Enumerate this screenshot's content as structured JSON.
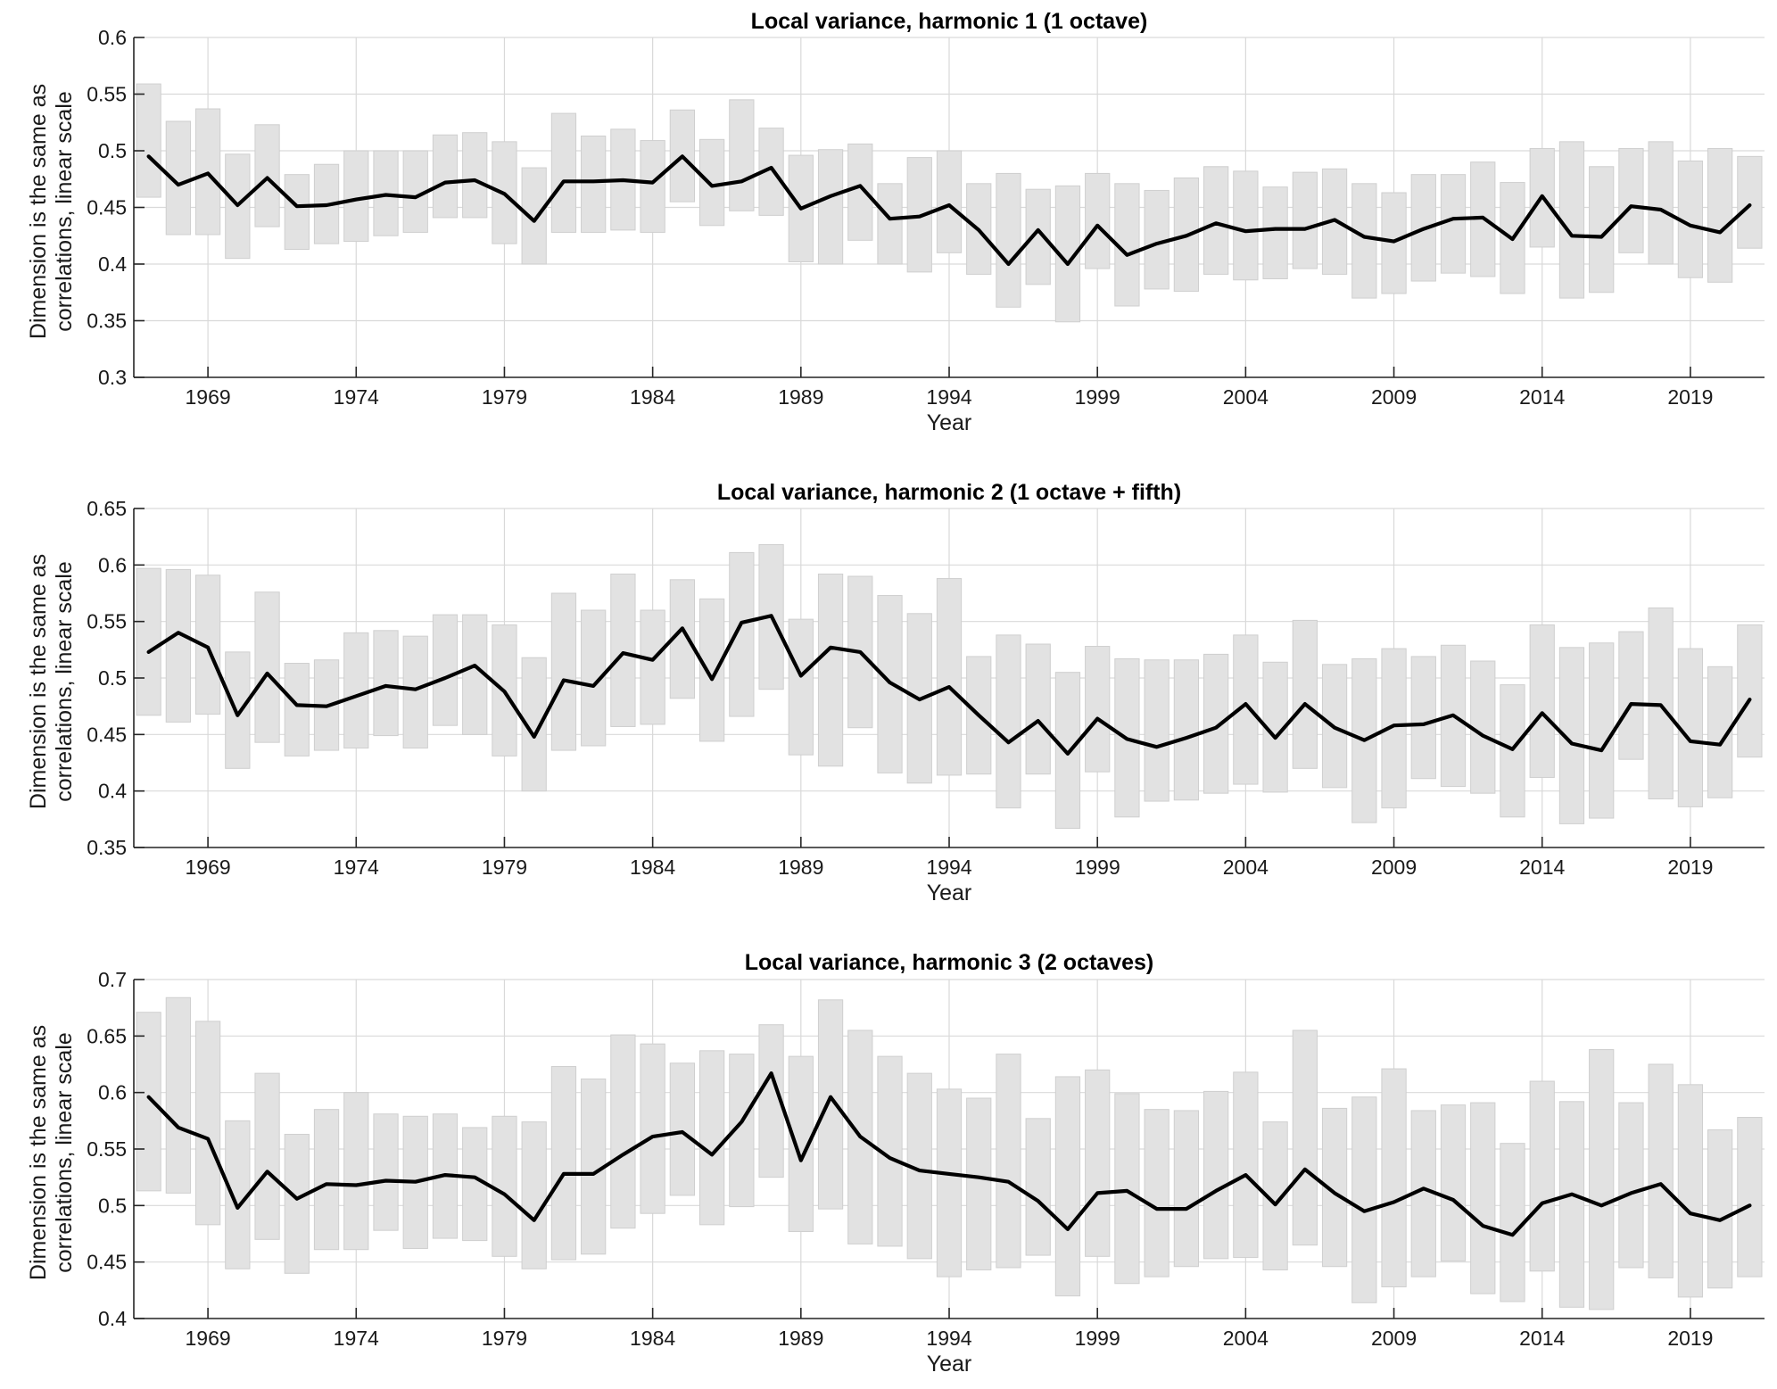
{
  "colors": {
    "line": "#000000",
    "error_box": "#e2e2e2",
    "error_box_edge": "#cfcfcf",
    "grid": "#d9d9d9",
    "axis": "#262626"
  },
  "chart_data": [
    {
      "type": "line",
      "title": "Local variance, harmonic 1 (1 octave)",
      "xlabel": "Year",
      "ylabel": [
        "Dimension is the same as",
        "correlations, linear scale"
      ],
      "xlim": [
        1966.5,
        2021.5
      ],
      "ylim": [
        0.3,
        0.6
      ],
      "yticks": [
        0.3,
        0.35,
        0.4,
        0.45,
        0.5,
        0.55,
        0.6
      ],
      "ytick_labels": [
        "0.3",
        "0.35",
        "0.4",
        "0.45",
        "0.5",
        "0.55",
        "0.6"
      ],
      "xticks": [
        1969,
        1974,
        1979,
        1984,
        1989,
        1994,
        1999,
        2004,
        2009,
        2014,
        2019
      ],
      "xtick_labels": [
        "1969",
        "1974",
        "1979",
        "1984",
        "1989",
        "1994",
        "1999",
        "2004",
        "2009",
        "2014",
        "2019"
      ],
      "grid": true,
      "x": [
        1967,
        1968,
        1969,
        1970,
        1971,
        1972,
        1973,
        1974,
        1975,
        1976,
        1977,
        1978,
        1979,
        1980,
        1981,
        1982,
        1983,
        1984,
        1985,
        1986,
        1987,
        1988,
        1989,
        1990,
        1991,
        1992,
        1993,
        1994,
        1995,
        1996,
        1997,
        1998,
        1999,
        2000,
        2001,
        2002,
        2003,
        2004,
        2005,
        2006,
        2007,
        2008,
        2009,
        2010,
        2011,
        2012,
        2013,
        2014,
        2015,
        2016,
        2017,
        2018,
        2019,
        2020,
        2021
      ],
      "y": [
        0.495,
        0.47,
        0.48,
        0.452,
        0.476,
        0.451,
        0.452,
        0.457,
        0.461,
        0.459,
        0.472,
        0.474,
        0.462,
        0.438,
        0.473,
        0.473,
        0.474,
        0.472,
        0.495,
        0.469,
        0.473,
        0.485,
        0.449,
        0.46,
        0.469,
        0.44,
        0.442,
        0.452,
        0.43,
        0.4,
        0.43,
        0.4,
        0.434,
        0.408,
        0.418,
        0.425,
        0.436,
        0.429,
        0.431,
        0.431,
        0.439,
        0.424,
        0.42,
        0.431,
        0.44,
        0.441,
        0.422,
        0.46,
        0.425,
        0.424,
        0.451,
        0.448,
        0.434,
        0.428,
        0.452
      ],
      "lower": [
        0.459,
        0.426,
        0.426,
        0.405,
        0.433,
        0.413,
        0.418,
        0.42,
        0.425,
        0.428,
        0.441,
        0.441,
        0.418,
        0.4,
        0.428,
        0.428,
        0.43,
        0.428,
        0.455,
        0.434,
        0.447,
        0.443,
        0.402,
        0.4,
        0.421,
        0.4,
        0.393,
        0.41,
        0.391,
        0.362,
        0.382,
        0.349,
        0.396,
        0.363,
        0.378,
        0.376,
        0.391,
        0.386,
        0.387,
        0.396,
        0.391,
        0.37,
        0.374,
        0.385,
        0.392,
        0.389,
        0.374,
        0.415,
        0.37,
        0.375,
        0.41,
        0.4,
        0.388,
        0.384,
        0.414
      ],
      "upper": [
        0.559,
        0.526,
        0.537,
        0.497,
        0.523,
        0.479,
        0.488,
        0.5,
        0.5,
        0.5,
        0.514,
        0.516,
        0.508,
        0.485,
        0.533,
        0.513,
        0.519,
        0.509,
        0.536,
        0.51,
        0.545,
        0.52,
        0.496,
        0.501,
        0.506,
        0.471,
        0.494,
        0.5,
        0.471,
        0.48,
        0.466,
        0.469,
        0.48,
        0.471,
        0.465,
        0.476,
        0.486,
        0.482,
        0.468,
        0.481,
        0.484,
        0.471,
        0.463,
        0.479,
        0.479,
        0.49,
        0.472,
        0.502,
        0.508,
        0.486,
        0.502,
        0.508,
        0.491,
        0.502,
        0.495
      ]
    },
    {
      "type": "line",
      "title": "Local variance, harmonic 2 (1 octave + fifth)",
      "xlabel": "Year",
      "ylabel": [
        "Dimension is the same as",
        "correlations, linear scale"
      ],
      "xlim": [
        1966.5,
        2021.5
      ],
      "ylim": [
        0.35,
        0.65
      ],
      "yticks": [
        0.35,
        0.4,
        0.45,
        0.5,
        0.55,
        0.6,
        0.65
      ],
      "ytick_labels": [
        "0.35",
        "0.4",
        "0.45",
        "0.5",
        "0.55",
        "0.6",
        "0.65"
      ],
      "xticks": [
        1969,
        1974,
        1979,
        1984,
        1989,
        1994,
        1999,
        2004,
        2009,
        2014,
        2019
      ],
      "xtick_labels": [
        "1969",
        "1974",
        "1979",
        "1984",
        "1989",
        "1994",
        "1999",
        "2004",
        "2009",
        "2014",
        "2019"
      ],
      "grid": true,
      "x": [
        1967,
        1968,
        1969,
        1970,
        1971,
        1972,
        1973,
        1974,
        1975,
        1976,
        1977,
        1978,
        1979,
        1980,
        1981,
        1982,
        1983,
        1984,
        1985,
        1986,
        1987,
        1988,
        1989,
        1990,
        1991,
        1992,
        1993,
        1994,
        1995,
        1996,
        1997,
        1998,
        1999,
        2000,
        2001,
        2002,
        2003,
        2004,
        2005,
        2006,
        2007,
        2008,
        2009,
        2010,
        2011,
        2012,
        2013,
        2014,
        2015,
        2016,
        2017,
        2018,
        2019,
        2020,
        2021
      ],
      "y": [
        0.523,
        0.54,
        0.527,
        0.467,
        0.504,
        0.476,
        0.475,
        0.484,
        0.493,
        0.49,
        0.5,
        0.511,
        0.488,
        0.448,
        0.498,
        0.493,
        0.522,
        0.516,
        0.544,
        0.499,
        0.549,
        0.555,
        0.502,
        0.527,
        0.523,
        0.496,
        0.481,
        0.492,
        0.467,
        0.443,
        0.462,
        0.433,
        0.464,
        0.446,
        0.439,
        0.447,
        0.456,
        0.477,
        0.447,
        0.477,
        0.456,
        0.445,
        0.458,
        0.459,
        0.467,
        0.449,
        0.437,
        0.469,
        0.442,
        0.436,
        0.477,
        0.476,
        0.444,
        0.441,
        0.481
      ],
      "lower": [
        0.467,
        0.461,
        0.468,
        0.42,
        0.443,
        0.431,
        0.436,
        0.438,
        0.449,
        0.438,
        0.458,
        0.45,
        0.431,
        0.4,
        0.436,
        0.44,
        0.457,
        0.459,
        0.482,
        0.444,
        0.466,
        0.49,
        0.432,
        0.422,
        0.456,
        0.416,
        0.407,
        0.414,
        0.415,
        0.385,
        0.415,
        0.367,
        0.417,
        0.377,
        0.391,
        0.392,
        0.398,
        0.406,
        0.399,
        0.42,
        0.403,
        0.372,
        0.385,
        0.411,
        0.404,
        0.398,
        0.377,
        0.412,
        0.371,
        0.376,
        0.428,
        0.393,
        0.386,
        0.394,
        0.43
      ],
      "upper": [
        0.597,
        0.596,
        0.591,
        0.523,
        0.576,
        0.513,
        0.516,
        0.54,
        0.542,
        0.537,
        0.556,
        0.556,
        0.547,
        0.518,
        0.575,
        0.56,
        0.592,
        0.56,
        0.587,
        0.57,
        0.611,
        0.618,
        0.552,
        0.592,
        0.59,
        0.573,
        0.557,
        0.588,
        0.519,
        0.538,
        0.53,
        0.505,
        0.528,
        0.517,
        0.516,
        0.516,
        0.521,
        0.538,
        0.514,
        0.551,
        0.512,
        0.517,
        0.526,
        0.519,
        0.529,
        0.515,
        0.494,
        0.547,
        0.527,
        0.531,
        0.541,
        0.562,
        0.526,
        0.51,
        0.547
      ]
    },
    {
      "type": "line",
      "title": "Local variance, harmonic 3 (2 octaves)",
      "xlabel": "Year",
      "ylabel": [
        "Dimension is the same as",
        "correlations, linear scale"
      ],
      "xlim": [
        1966.5,
        2021.5
      ],
      "ylim": [
        0.4,
        0.7
      ],
      "yticks": [
        0.4,
        0.45,
        0.5,
        0.55,
        0.6,
        0.65,
        0.7
      ],
      "ytick_labels": [
        "0.4",
        "0.45",
        "0.5",
        "0.55",
        "0.6",
        "0.65",
        "0.7"
      ],
      "xticks": [
        1969,
        1974,
        1979,
        1984,
        1989,
        1994,
        1999,
        2004,
        2009,
        2014,
        2019
      ],
      "xtick_labels": [
        "1969",
        "1974",
        "1979",
        "1984",
        "1989",
        "1994",
        "1999",
        "2004",
        "2009",
        "2014",
        "2019"
      ],
      "grid": true,
      "x": [
        1967,
        1968,
        1969,
        1970,
        1971,
        1972,
        1973,
        1974,
        1975,
        1976,
        1977,
        1978,
        1979,
        1980,
        1981,
        1982,
        1983,
        1984,
        1985,
        1986,
        1987,
        1988,
        1989,
        1990,
        1991,
        1992,
        1993,
        1994,
        1995,
        1996,
        1997,
        1998,
        1999,
        2000,
        2001,
        2002,
        2003,
        2004,
        2005,
        2006,
        2007,
        2008,
        2009,
        2010,
        2011,
        2012,
        2013,
        2014,
        2015,
        2016,
        2017,
        2018,
        2019,
        2020,
        2021
      ],
      "y": [
        0.596,
        0.569,
        0.559,
        0.498,
        0.53,
        0.506,
        0.519,
        0.518,
        0.522,
        0.521,
        0.527,
        0.525,
        0.51,
        0.487,
        0.528,
        0.528,
        0.545,
        0.561,
        0.565,
        0.545,
        0.574,
        0.617,
        0.54,
        0.596,
        0.561,
        0.542,
        0.531,
        0.528,
        0.525,
        0.521,
        0.504,
        0.479,
        0.511,
        0.513,
        0.497,
        0.497,
        0.513,
        0.527,
        0.501,
        0.532,
        0.511,
        0.495,
        0.503,
        0.515,
        0.505,
        0.482,
        0.474,
        0.502,
        0.51,
        0.5,
        0.511,
        0.519,
        0.493,
        0.487,
        0.5
      ],
      "lower": [
        0.513,
        0.511,
        0.483,
        0.444,
        0.47,
        0.44,
        0.461,
        0.461,
        0.478,
        0.462,
        0.471,
        0.469,
        0.455,
        0.444,
        0.452,
        0.457,
        0.48,
        0.493,
        0.509,
        0.483,
        0.499,
        0.525,
        0.477,
        0.497,
        0.466,
        0.464,
        0.453,
        0.437,
        0.443,
        0.445,
        0.456,
        0.42,
        0.455,
        0.431,
        0.437,
        0.446,
        0.453,
        0.454,
        0.443,
        0.465,
        0.446,
        0.414,
        0.428,
        0.437,
        0.451,
        0.422,
        0.415,
        0.442,
        0.41,
        0.408,
        0.445,
        0.436,
        0.419,
        0.427,
        0.437
      ],
      "upper": [
        0.671,
        0.684,
        0.663,
        0.575,
        0.617,
        0.563,
        0.585,
        0.6,
        0.581,
        0.579,
        0.581,
        0.569,
        0.579,
        0.574,
        0.623,
        0.612,
        0.651,
        0.643,
        0.626,
        0.637,
        0.634,
        0.66,
        0.632,
        0.682,
        0.655,
        0.632,
        0.617,
        0.603,
        0.595,
        0.634,
        0.577,
        0.614,
        0.62,
        0.599,
        0.585,
        0.584,
        0.601,
        0.618,
        0.574,
        0.655,
        0.586,
        0.596,
        0.621,
        0.584,
        0.589,
        0.591,
        0.555,
        0.61,
        0.592,
        0.638,
        0.591,
        0.625,
        0.607,
        0.567,
        0.578
      ]
    }
  ]
}
